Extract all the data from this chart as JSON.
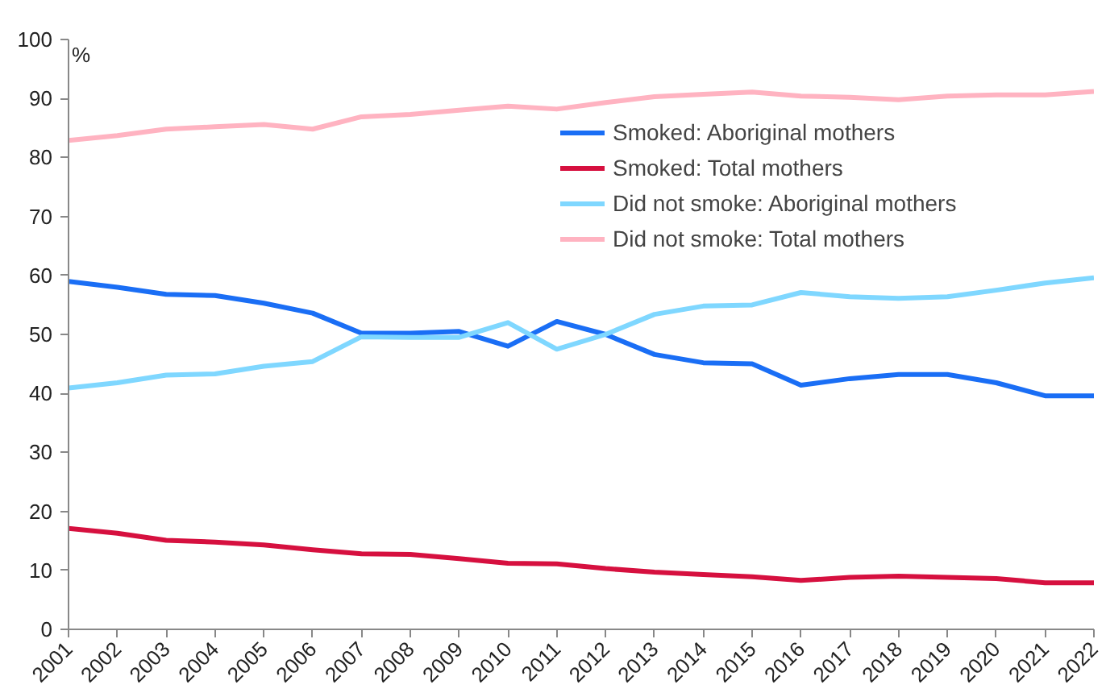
{
  "chart_data": {
    "type": "line",
    "ylabel": "%",
    "categories": [
      "2001",
      "2002",
      "2003",
      "2004",
      "2005",
      "2006",
      "2007",
      "2008",
      "2009",
      "2010",
      "2011",
      "2012",
      "2013",
      "2014",
      "2015",
      "2016",
      "2017",
      "2018",
      "2019",
      "2020",
      "2021",
      "2022"
    ],
    "series": [
      {
        "name": "Smoked: Aboriginal mothers",
        "color": "#1a6ef5",
        "values": [
          59,
          58,
          56.8,
          56.6,
          55.3,
          53.6,
          50.2,
          50.2,
          50.5,
          48,
          52.2,
          50,
          46.6,
          45.2,
          45,
          41.4,
          42.5,
          43.2,
          43.2,
          41.8,
          39.6,
          39.6
        ]
      },
      {
        "name": "Smoked: Total mothers",
        "color": "#d6103f",
        "values": [
          17.1,
          16.3,
          15.1,
          14.8,
          14.3,
          13.5,
          12.8,
          12.7,
          12,
          11.2,
          11.1,
          10.3,
          9.7,
          9.3,
          8.9,
          8.3,
          8.8,
          9,
          8.8,
          8.6,
          7.9,
          7.9
        ]
      },
      {
        "name": "Did not smoke: Aboriginal mothers",
        "color": "#7fd7ff",
        "values": [
          40.9,
          41.8,
          43.1,
          43.3,
          44.6,
          45.4,
          49.6,
          49.5,
          49.5,
          52,
          47.5,
          50,
          53.4,
          54.8,
          55,
          57.1,
          56.4,
          56.1,
          56.4,
          57.5,
          58.7,
          59.6
        ]
      },
      {
        "name": "Did not smoke: Total mothers",
        "color": "#ffb3c1",
        "values": [
          82.9,
          83.7,
          84.8,
          85.2,
          85.6,
          84.8,
          86.9,
          87.3,
          88,
          88.7,
          88.2,
          89.3,
          90.3,
          90.7,
          91.1,
          90.4,
          90.2,
          89.8,
          90.4,
          90.6,
          90.6,
          91.2
        ]
      }
    ],
    "ylim": [
      0,
      100
    ],
    "yticks": [
      0,
      10,
      20,
      30,
      40,
      50,
      60,
      70,
      80,
      90,
      100
    ],
    "grid": false,
    "legend": "top right",
    "marker": "none",
    "line_style": "solid"
  }
}
